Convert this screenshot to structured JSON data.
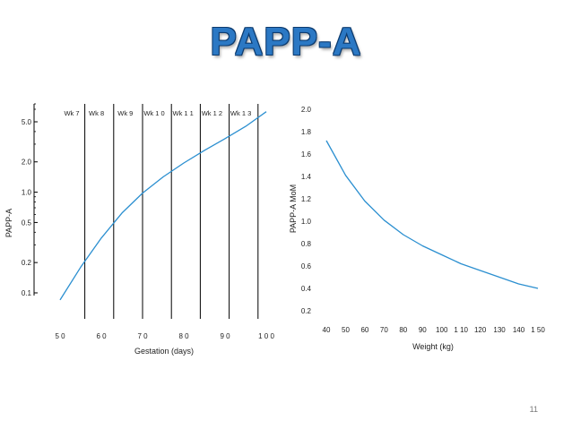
{
  "slide": {
    "title": "PAPP-A",
    "page_number": "11",
    "line_color": "#2b8fd0"
  },
  "chart_data": [
    {
      "type": "line",
      "title": "",
      "xlabel": "Gestation (days)",
      "ylabel": "PAPP-A",
      "x_scale": "linear",
      "y_scale": "log",
      "xlim": [
        50,
        100
      ],
      "ylim": [
        0.1,
        5.0
      ],
      "x_ticks": [
        50,
        60,
        70,
        80,
        90,
        100
      ],
      "x_tick_labels": [
        "5 0",
        "6 0",
        "7 0",
        "8 0",
        "9 0",
        "1 0 0"
      ],
      "y_ticks": [
        0.1,
        0.2,
        0.5,
        1.0,
        2.0,
        5.0
      ],
      "y_tick_labels": [
        "0.1",
        "0.2",
        "0.5",
        "1.0",
        "2.0",
        "5.0"
      ],
      "grid": false,
      "week_markers": [
        {
          "label": "Wk 7",
          "day": 49
        },
        {
          "label": "Wk 8",
          "day": 56
        },
        {
          "label": "Wk 9",
          "day": 63
        },
        {
          "label": "Wk 1 0",
          "day": 70
        },
        {
          "label": "Wk 1 1",
          "day": 77
        },
        {
          "label": "Wk 1 2",
          "day": 84
        },
        {
          "label": "Wk 1 3",
          "day": 91
        },
        {
          "label": "",
          "day": 98
        }
      ],
      "series": [
        {
          "x": [
            50,
            55,
            60,
            65,
            70,
            75,
            80,
            85,
            90,
            95,
            100
          ],
          "values": [
            0.085,
            0.18,
            0.35,
            0.62,
            0.98,
            1.42,
            1.95,
            2.6,
            3.4,
            4.5,
            6.3
          ]
        }
      ]
    },
    {
      "type": "line",
      "title": "",
      "xlabel": "Weight (kg)",
      "ylabel": "PAPP-A MoM",
      "x_scale": "linear",
      "y_scale": "linear",
      "xlim": [
        40,
        150
      ],
      "ylim": [
        0.2,
        2.0
      ],
      "x_ticks": [
        40,
        50,
        60,
        70,
        80,
        90,
        100,
        110,
        120,
        130,
        140,
        150
      ],
      "x_tick_labels": [
        "40",
        "50",
        "60",
        "70",
        "80",
        "90",
        "100",
        "1 10",
        "120",
        "130",
        "140",
        "1 50"
      ],
      "y_ticks": [
        0.2,
        0.4,
        0.6,
        0.8,
        1.0,
        1.2,
        1.4,
        1.6,
        1.8,
        2.0
      ],
      "y_tick_labels": [
        "0.2",
        "0.4",
        "0.6",
        "0.8",
        "1.0",
        "1.2",
        "1.4",
        "1.6",
        "1.8",
        "2.0"
      ],
      "grid": false,
      "series": [
        {
          "x": [
            40,
            50,
            60,
            70,
            80,
            90,
            100,
            110,
            120,
            130,
            140,
            150
          ],
          "values": [
            1.72,
            1.41,
            1.18,
            1.01,
            0.88,
            0.78,
            0.7,
            0.62,
            0.56,
            0.5,
            0.44,
            0.4
          ]
        }
      ]
    }
  ]
}
